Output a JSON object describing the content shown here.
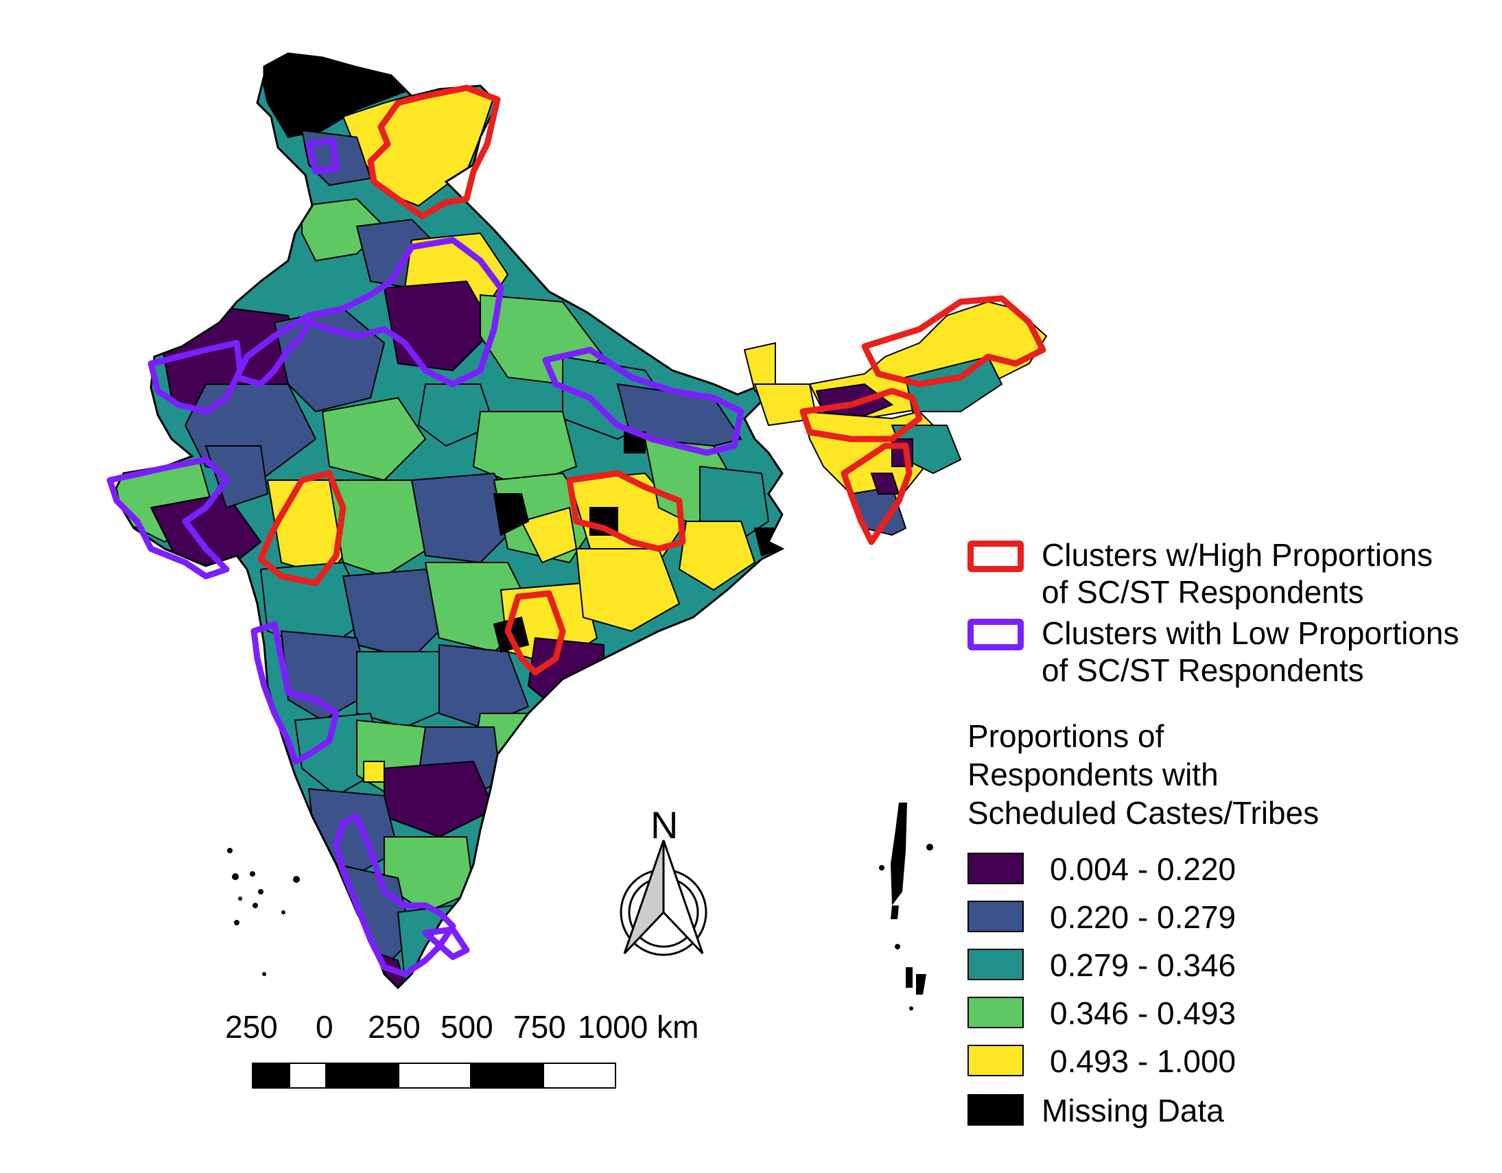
{
  "legend": {
    "cluster_high": "Clusters w/High Proportions",
    "cluster_high_2": "of SC/ST Respondents",
    "cluster_low": "Clusters with Low Proportions",
    "cluster_low_2": "of SC/ST Respondents",
    "cluster_high_color": "#e8201e",
    "cluster_low_color": "#7b1fff",
    "title_1": "Proportions of",
    "title_2": "Respondents with",
    "title_3": "Scheduled Castes/Tribes",
    "classes": [
      {
        "label": "0.004 - 0.220",
        "color": "#440154"
      },
      {
        "label": "0.220 - 0.279",
        "color": "#3b528b"
      },
      {
        "label": "0.279 - 0.346",
        "color": "#21918c"
      },
      {
        "label": "0.346 - 0.493",
        "color": "#5ec962"
      },
      {
        "label": "0.493 - 1.000",
        "color": "#fde725"
      },
      {
        "label": "Missing Data",
        "color": "#000000"
      }
    ]
  },
  "north_arrow": {
    "label": "N"
  },
  "scale_bar": {
    "labels": [
      "250",
      "0",
      "250",
      "500",
      "750",
      "1000 km"
    ]
  }
}
